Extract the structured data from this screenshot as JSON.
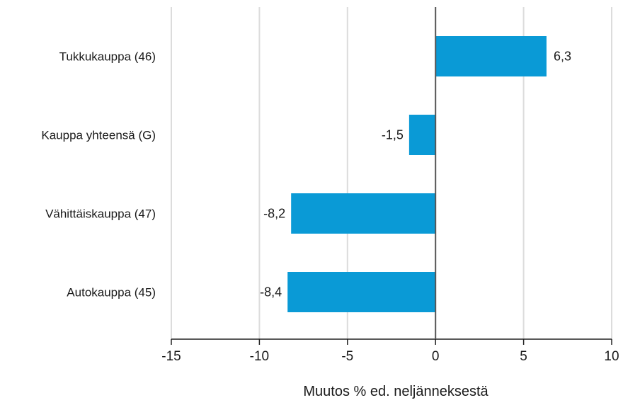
{
  "chart_data": {
    "type": "bar",
    "orientation": "horizontal",
    "categories": [
      "Tukkukauppa (46)",
      "Kauppa yhteensä (G)",
      "Vähittäiskauppa (47)",
      "Autokauppa (45)"
    ],
    "values": [
      6.3,
      -1.5,
      -8.2,
      -8.4
    ],
    "value_labels": [
      "6,3",
      "-1,5",
      "-8,2",
      "-8,4"
    ],
    "xlabel": "Muutos % ed. neljänneksestä",
    "xlim": [
      -15,
      10
    ],
    "xticks": [
      -15,
      -10,
      -5,
      0,
      5,
      10
    ],
    "xtick_labels": [
      "-15",
      "-10",
      "-5",
      "0",
      "5",
      "10"
    ],
    "grid": "vertical",
    "bar_color": "#0a9ad6"
  }
}
